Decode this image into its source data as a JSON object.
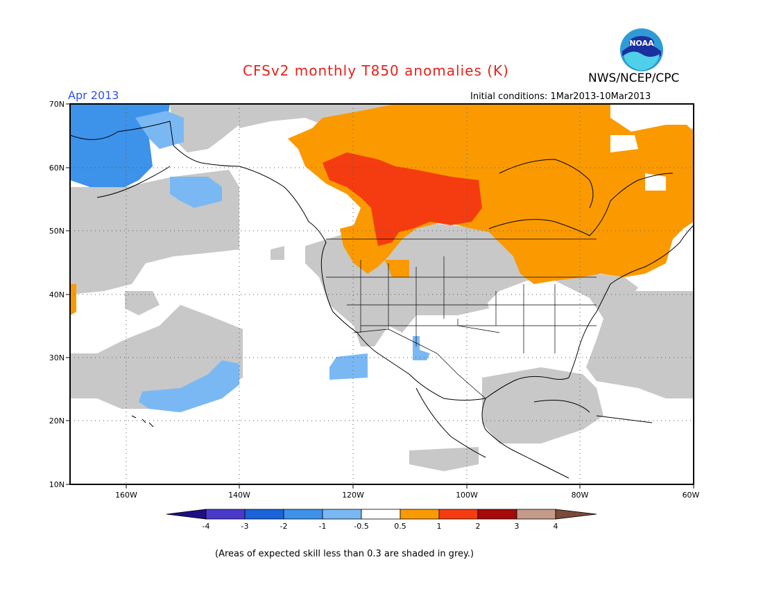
{
  "header": {
    "title": "CFSv2 monthly T850 anomalies (K)",
    "agency": "NWS/NCEP/CPC",
    "month": "Apr 2013",
    "initial_conditions": "Initial conditions: 1Mar2013-10Mar2013"
  },
  "logo": {
    "text": "NOAA",
    "icon": "noaa-logo"
  },
  "map": {
    "lat_labels": [
      "70N",
      "60N",
      "50N",
      "40N",
      "30N",
      "20N",
      "10N"
    ],
    "lon_labels": [
      "160W",
      "140W",
      "120W",
      "100W",
      "80W",
      "60W"
    ]
  },
  "colorbar": {
    "labels": [
      "-4",
      "-3",
      "-2",
      "-1",
      "-0.5",
      "0.5",
      "1",
      "2",
      "3",
      "4"
    ],
    "colors": [
      "#1e0f82",
      "#4a3acb",
      "#1a63d8",
      "#3d92ea",
      "#7ab8f4",
      "#ffffff",
      "#fa9a00",
      "#f53c10",
      "#a50b0b",
      "#c49a88",
      "#7a4a3a"
    ]
  },
  "colors": {
    "grey": "#c8c8c8",
    "blue_dark": "#3d92ea",
    "blue_light": "#7ab8f4",
    "orange": "#fa9a00",
    "red": "#f53c10"
  },
  "footnote": "(Areas of expected skill less than 0.3 are shaded in grey.)"
}
